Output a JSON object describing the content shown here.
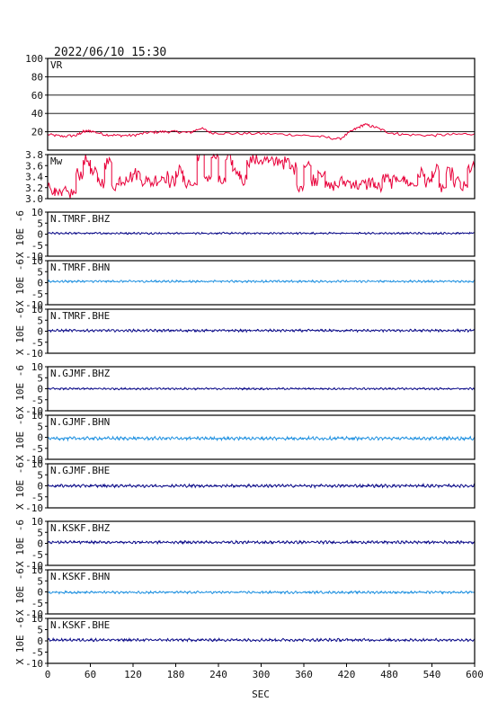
{
  "header": {
    "datetime": "2022/06/10 15:30"
  },
  "colors": {
    "vr": "#e8003a",
    "mw": "#e8003a",
    "dark_blue": "#0a0a88",
    "light_blue": "#1e90e0"
  },
  "chart_data": {
    "type": "line",
    "xlabel": "SEC",
    "xlim": [
      0,
      600
    ],
    "x_ticks": [
      "0",
      "60",
      "120",
      "180",
      "240",
      "300",
      "360",
      "420",
      "480",
      "540",
      "600"
    ],
    "panels": [
      {
        "id": "vr",
        "label": "VR",
        "ylim": [
          0,
          100
        ],
        "y_ticks": [
          "100",
          "80",
          "60",
          "40",
          "20"
        ],
        "grid": true,
        "x": [
          0,
          20,
          40,
          50,
          60,
          80,
          100,
          120,
          140,
          160,
          180,
          200,
          215,
          230,
          260,
          300,
          340,
          380,
          410,
          430,
          445,
          460,
          480,
          500,
          540,
          570,
          600
        ],
        "values": [
          17,
          15,
          16,
          20,
          21,
          17,
          16,
          16,
          19,
          20,
          20,
          19,
          24,
          19,
          18,
          18,
          17,
          15,
          12,
          22,
          28,
          25,
          19,
          17,
          16,
          17,
          18
        ]
      },
      {
        "id": "mw",
        "label": "Mw",
        "ylim": [
          3.0,
          3.8
        ],
        "y_ticks": [
          "3.8",
          "3.6",
          "3.4",
          "3.2",
          "3.0"
        ],
        "grid": false,
        "x": [
          0,
          10,
          20,
          30,
          40,
          50,
          60,
          70,
          80,
          90,
          100,
          110,
          120,
          130,
          140,
          150,
          160,
          170,
          180,
          190,
          200,
          210,
          220,
          230,
          240,
          250,
          260,
          270,
          280,
          290,
          300,
          310,
          320,
          330,
          340,
          350,
          360,
          370,
          380,
          390,
          400,
          410,
          420,
          430,
          440,
          450,
          460,
          470,
          480,
          490,
          500,
          510,
          520,
          530,
          540,
          550,
          560,
          570,
          580,
          590,
          600
        ],
        "values": [
          3.2,
          3.05,
          3.1,
          3.1,
          3.45,
          3.7,
          3.45,
          3.3,
          3.65,
          3.25,
          3.35,
          3.4,
          3.45,
          3.35,
          3.3,
          3.35,
          3.4,
          3.3,
          3.5,
          3.3,
          3.25,
          3.8,
          3.4,
          3.75,
          3.3,
          3.7,
          3.5,
          3.35,
          3.7,
          3.7,
          3.7,
          3.65,
          3.7,
          3.65,
          3.55,
          3.25,
          3.6,
          3.35,
          3.5,
          3.2,
          3.25,
          3.3,
          3.3,
          3.25,
          3.25,
          3.3,
          3.2,
          3.35,
          3.3,
          3.4,
          3.3,
          3.25,
          3.45,
          3.3,
          3.5,
          3.2,
          3.45,
          3.3,
          3.2,
          3.55,
          3.4
        ]
      },
      {
        "id": "tmrf-bhz",
        "label": "N.TMRF.BHZ",
        "ylabel": "X 10E -6",
        "ylim": [
          -10,
          10
        ],
        "y_ticks": [
          "10",
          "5",
          "0",
          "-5",
          "-10"
        ],
        "color": "#0a0a88",
        "baseline": 0.4,
        "noise": 0.35
      },
      {
        "id": "tmrf-bhn",
        "label": "N.TMRF.BHN",
        "ylabel": "X 10E -6",
        "ylim": [
          -10,
          10
        ],
        "y_ticks": [
          "10",
          "5",
          "0",
          "-5",
          "-10"
        ],
        "color": "#1e90e0",
        "baseline": 0.6,
        "noise": 0.4
      },
      {
        "id": "tmrf-bhe",
        "label": "N.TMRF.BHE",
        "ylabel": "X 10E -6",
        "ylim": [
          -10,
          10
        ],
        "y_ticks": [
          "10",
          "5",
          "0",
          "-5",
          "-10"
        ],
        "color": "#0a0a88",
        "baseline": 0.3,
        "noise": 0.45
      },
      {
        "id": "gjmf-bhz",
        "label": "N.GJMF.BHZ",
        "ylabel": "X 10E -6",
        "ylim": [
          -10,
          10
        ],
        "y_ticks": [
          "10",
          "5",
          "0",
          "-5",
          "-10"
        ],
        "color": "#0a0a88",
        "baseline": 0.0,
        "noise": 0.35
      },
      {
        "id": "gjmf-bhn",
        "label": "N.GJMF.BHN",
        "ylabel": "X 10E -6",
        "ylim": [
          -10,
          10
        ],
        "y_ticks": [
          "10",
          "5",
          "0",
          "-5",
          "-10"
        ],
        "color": "#1e90e0",
        "baseline": -0.5,
        "noise": 0.6
      },
      {
        "id": "gjmf-bhe",
        "label": "N.GJMF.BHE",
        "ylabel": "X 10E -6",
        "ylim": [
          -10,
          10
        ],
        "y_ticks": [
          "10",
          "5",
          "0",
          "-5",
          "-10"
        ],
        "color": "#0a0a88",
        "baseline": 0.0,
        "noise": 0.55
      },
      {
        "id": "kskf-bhz",
        "label": "N.KSKF.BHZ",
        "ylabel": "X 10E -6",
        "ylim": [
          -10,
          10
        ],
        "y_ticks": [
          "10",
          "5",
          "0",
          "-5",
          "-10"
        ],
        "color": "#0a0a88",
        "baseline": 0.5,
        "noise": 0.5
      },
      {
        "id": "kskf-bhn",
        "label": "N.KSKF.BHN",
        "ylabel": "X 10E -6",
        "ylim": [
          -10,
          10
        ],
        "y_ticks": [
          "10",
          "5",
          "0",
          "-5",
          "-10"
        ],
        "color": "#1e90e0",
        "baseline": -0.2,
        "noise": 0.45
      },
      {
        "id": "kskf-bhe",
        "label": "N.KSKF.BHE",
        "ylabel": "X 10E -6",
        "ylim": [
          -10,
          10
        ],
        "y_ticks": [
          "10",
          "5",
          "0",
          "-5",
          "-10"
        ],
        "color": "#0a0a88",
        "baseline": 0.4,
        "noise": 0.5
      }
    ]
  }
}
